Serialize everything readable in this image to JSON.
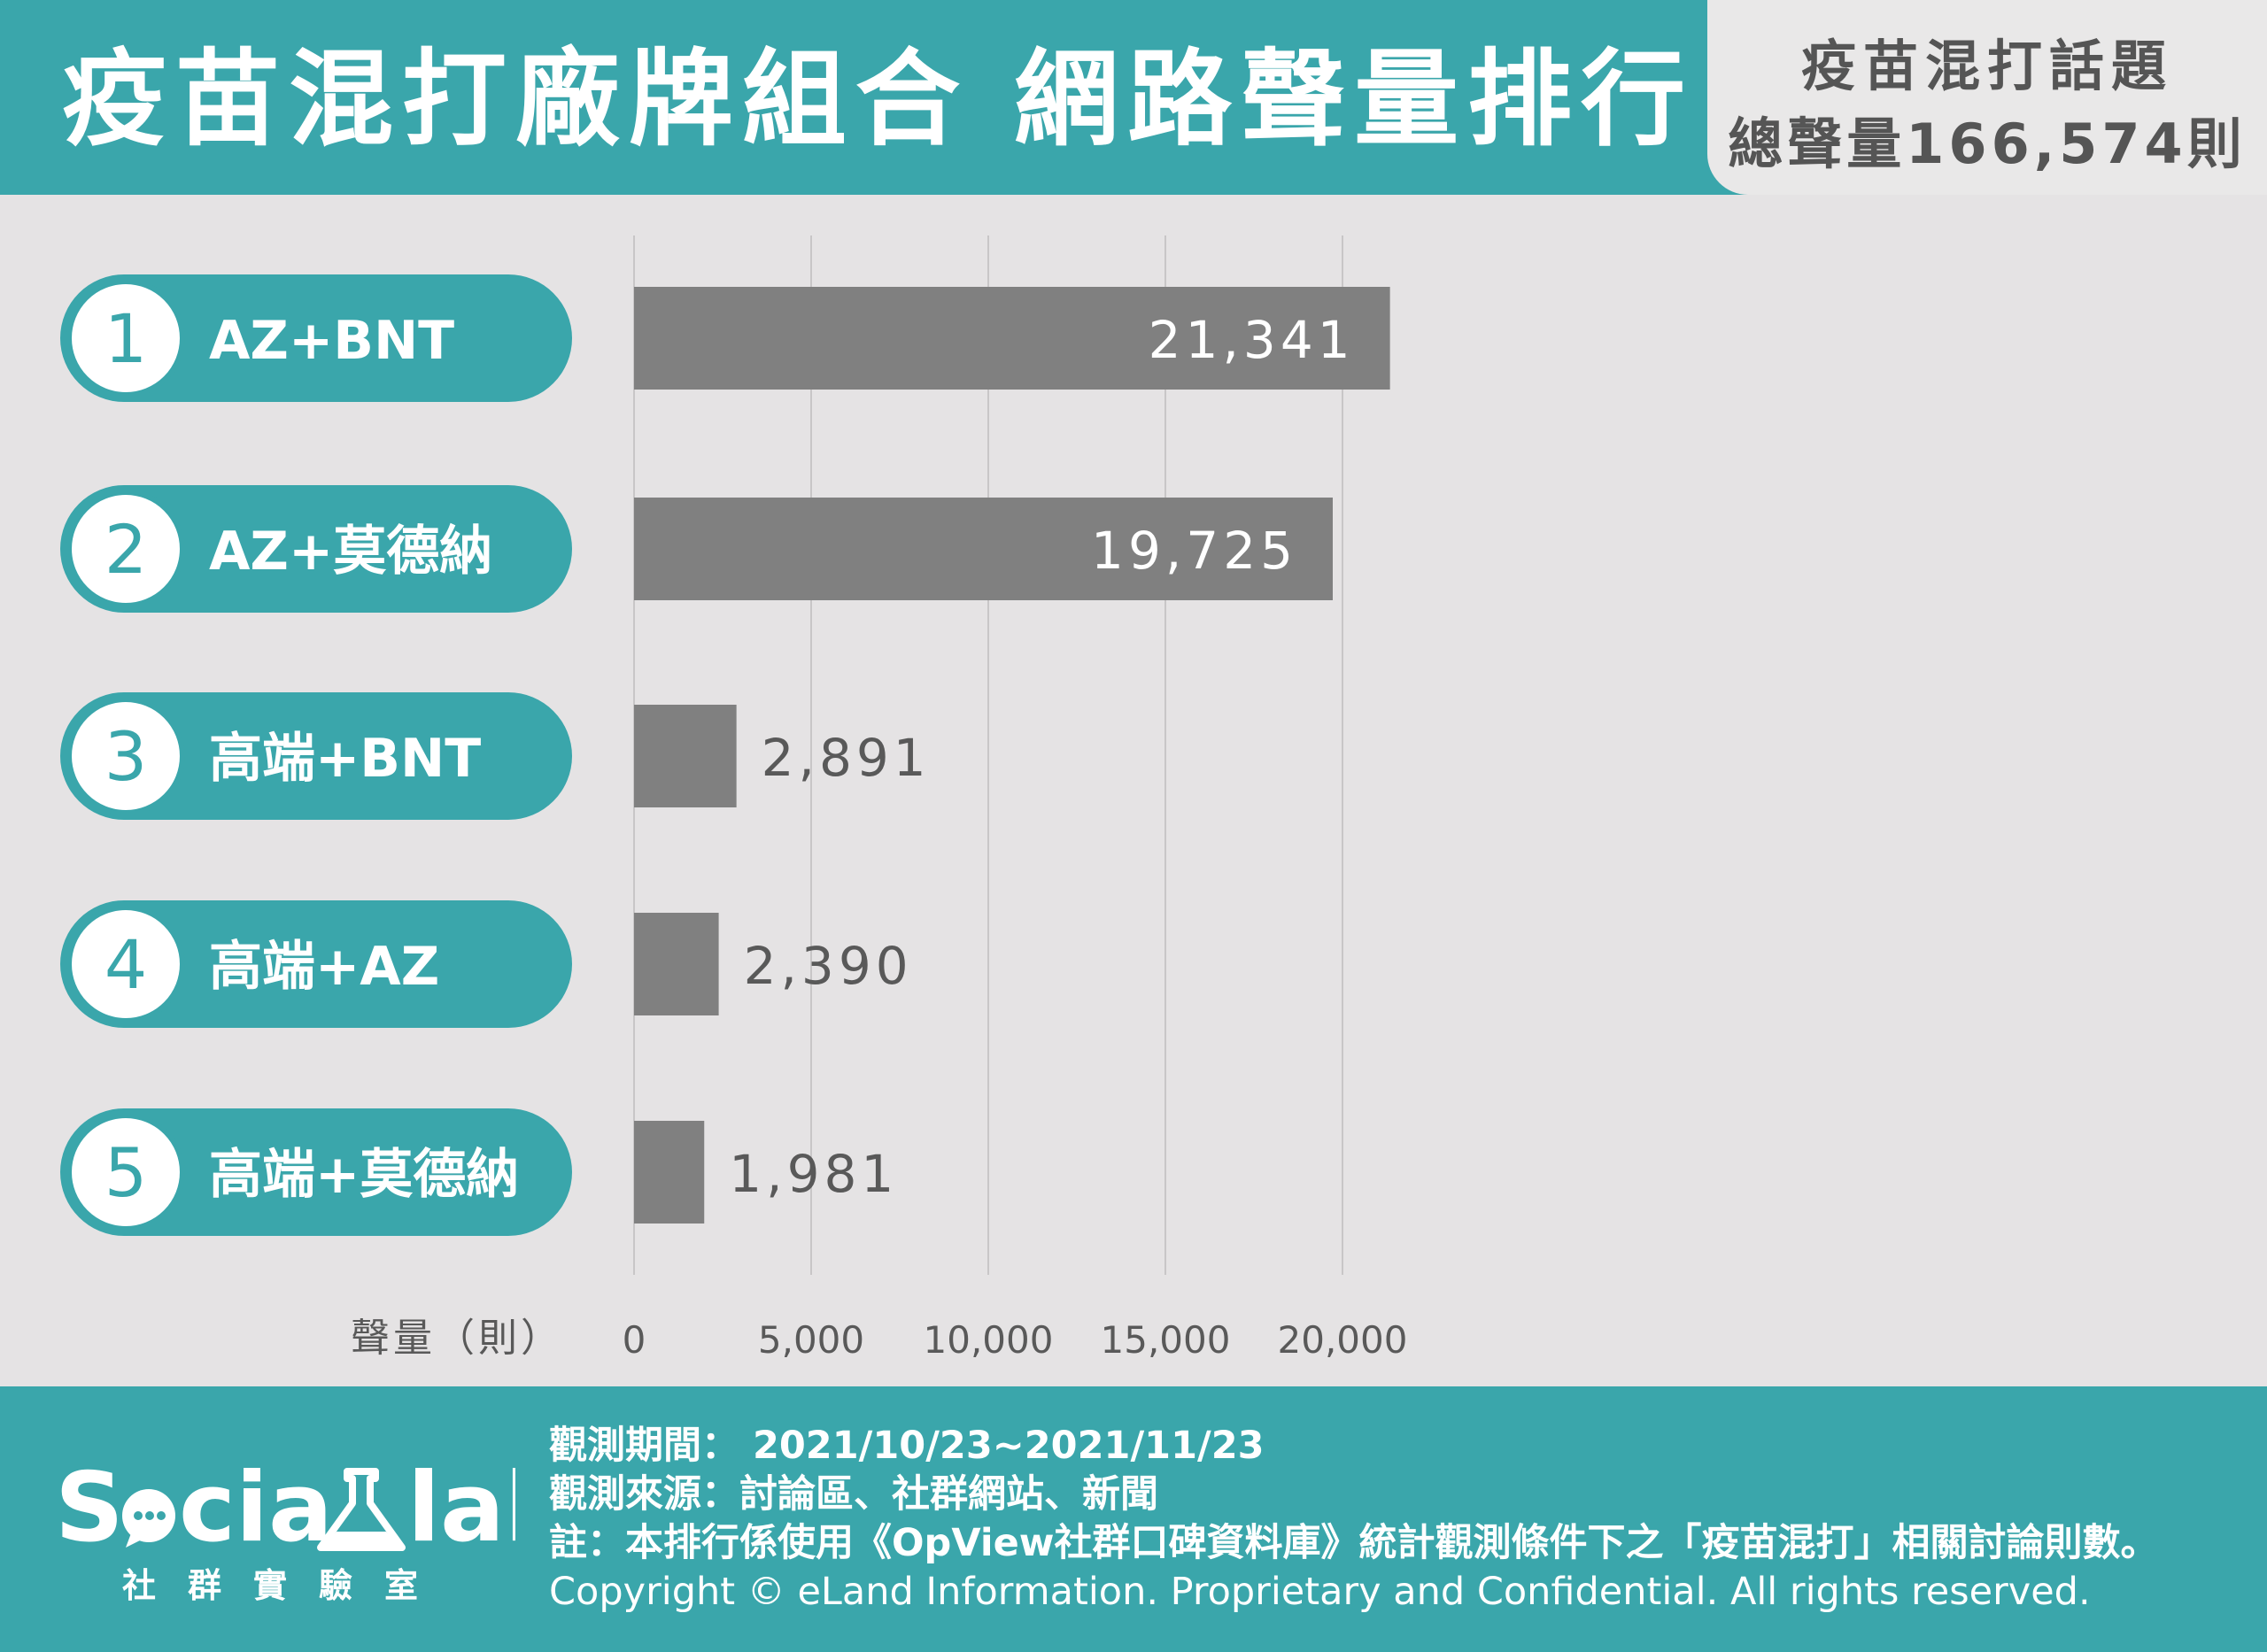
{
  "header": {
    "title": "疫苗混打廠牌組合 網路聲量排行",
    "total_line1": "疫苗混打話題",
    "total_line2": "總聲量166,574則"
  },
  "colors": {
    "teal": "#3aa6ab",
    "bar": "#808080",
    "background": "#e5e3e4",
    "grid": "#c8c6c7",
    "value_label_inside": "#ffffff",
    "value_label_outside": "#595959"
  },
  "chart_data": {
    "type": "bar",
    "orientation": "horizontal",
    "categories": [
      "AZ+BNT",
      "AZ+莫德納",
      "高端+BNT",
      "高端+AZ",
      "高端+莫德納"
    ],
    "ranks": [
      "1",
      "2",
      "3",
      "4",
      "5"
    ],
    "values": [
      21341,
      19725,
      2891,
      2390,
      1981
    ],
    "value_labels": [
      "21,341",
      "19,725",
      "2,891",
      "2,390",
      "1,981"
    ],
    "xlabel": "聲量（則）",
    "xlim": [
      0,
      22000
    ],
    "xticks": [
      0,
      5000,
      10000,
      15000,
      20000
    ],
    "xtick_labels": [
      "0",
      "5,000",
      "10,000",
      "15,000",
      "20,000"
    ],
    "grid": true,
    "legend": "none"
  },
  "footer": {
    "logo_text": "Socialab",
    "logo_sub": "社群實驗室",
    "period": "觀測期間： 2021/10/23~2021/11/23",
    "source": "觀測來源：討論區、社群網站、新聞",
    "note": "註：本排行係使用《OpView社群口碑資料庫》統計觀測條件下之「疫苗混打」相關討論則數。",
    "copyright": "Copyright © eLand Information. Proprietary and Confidential. All rights reserved."
  }
}
